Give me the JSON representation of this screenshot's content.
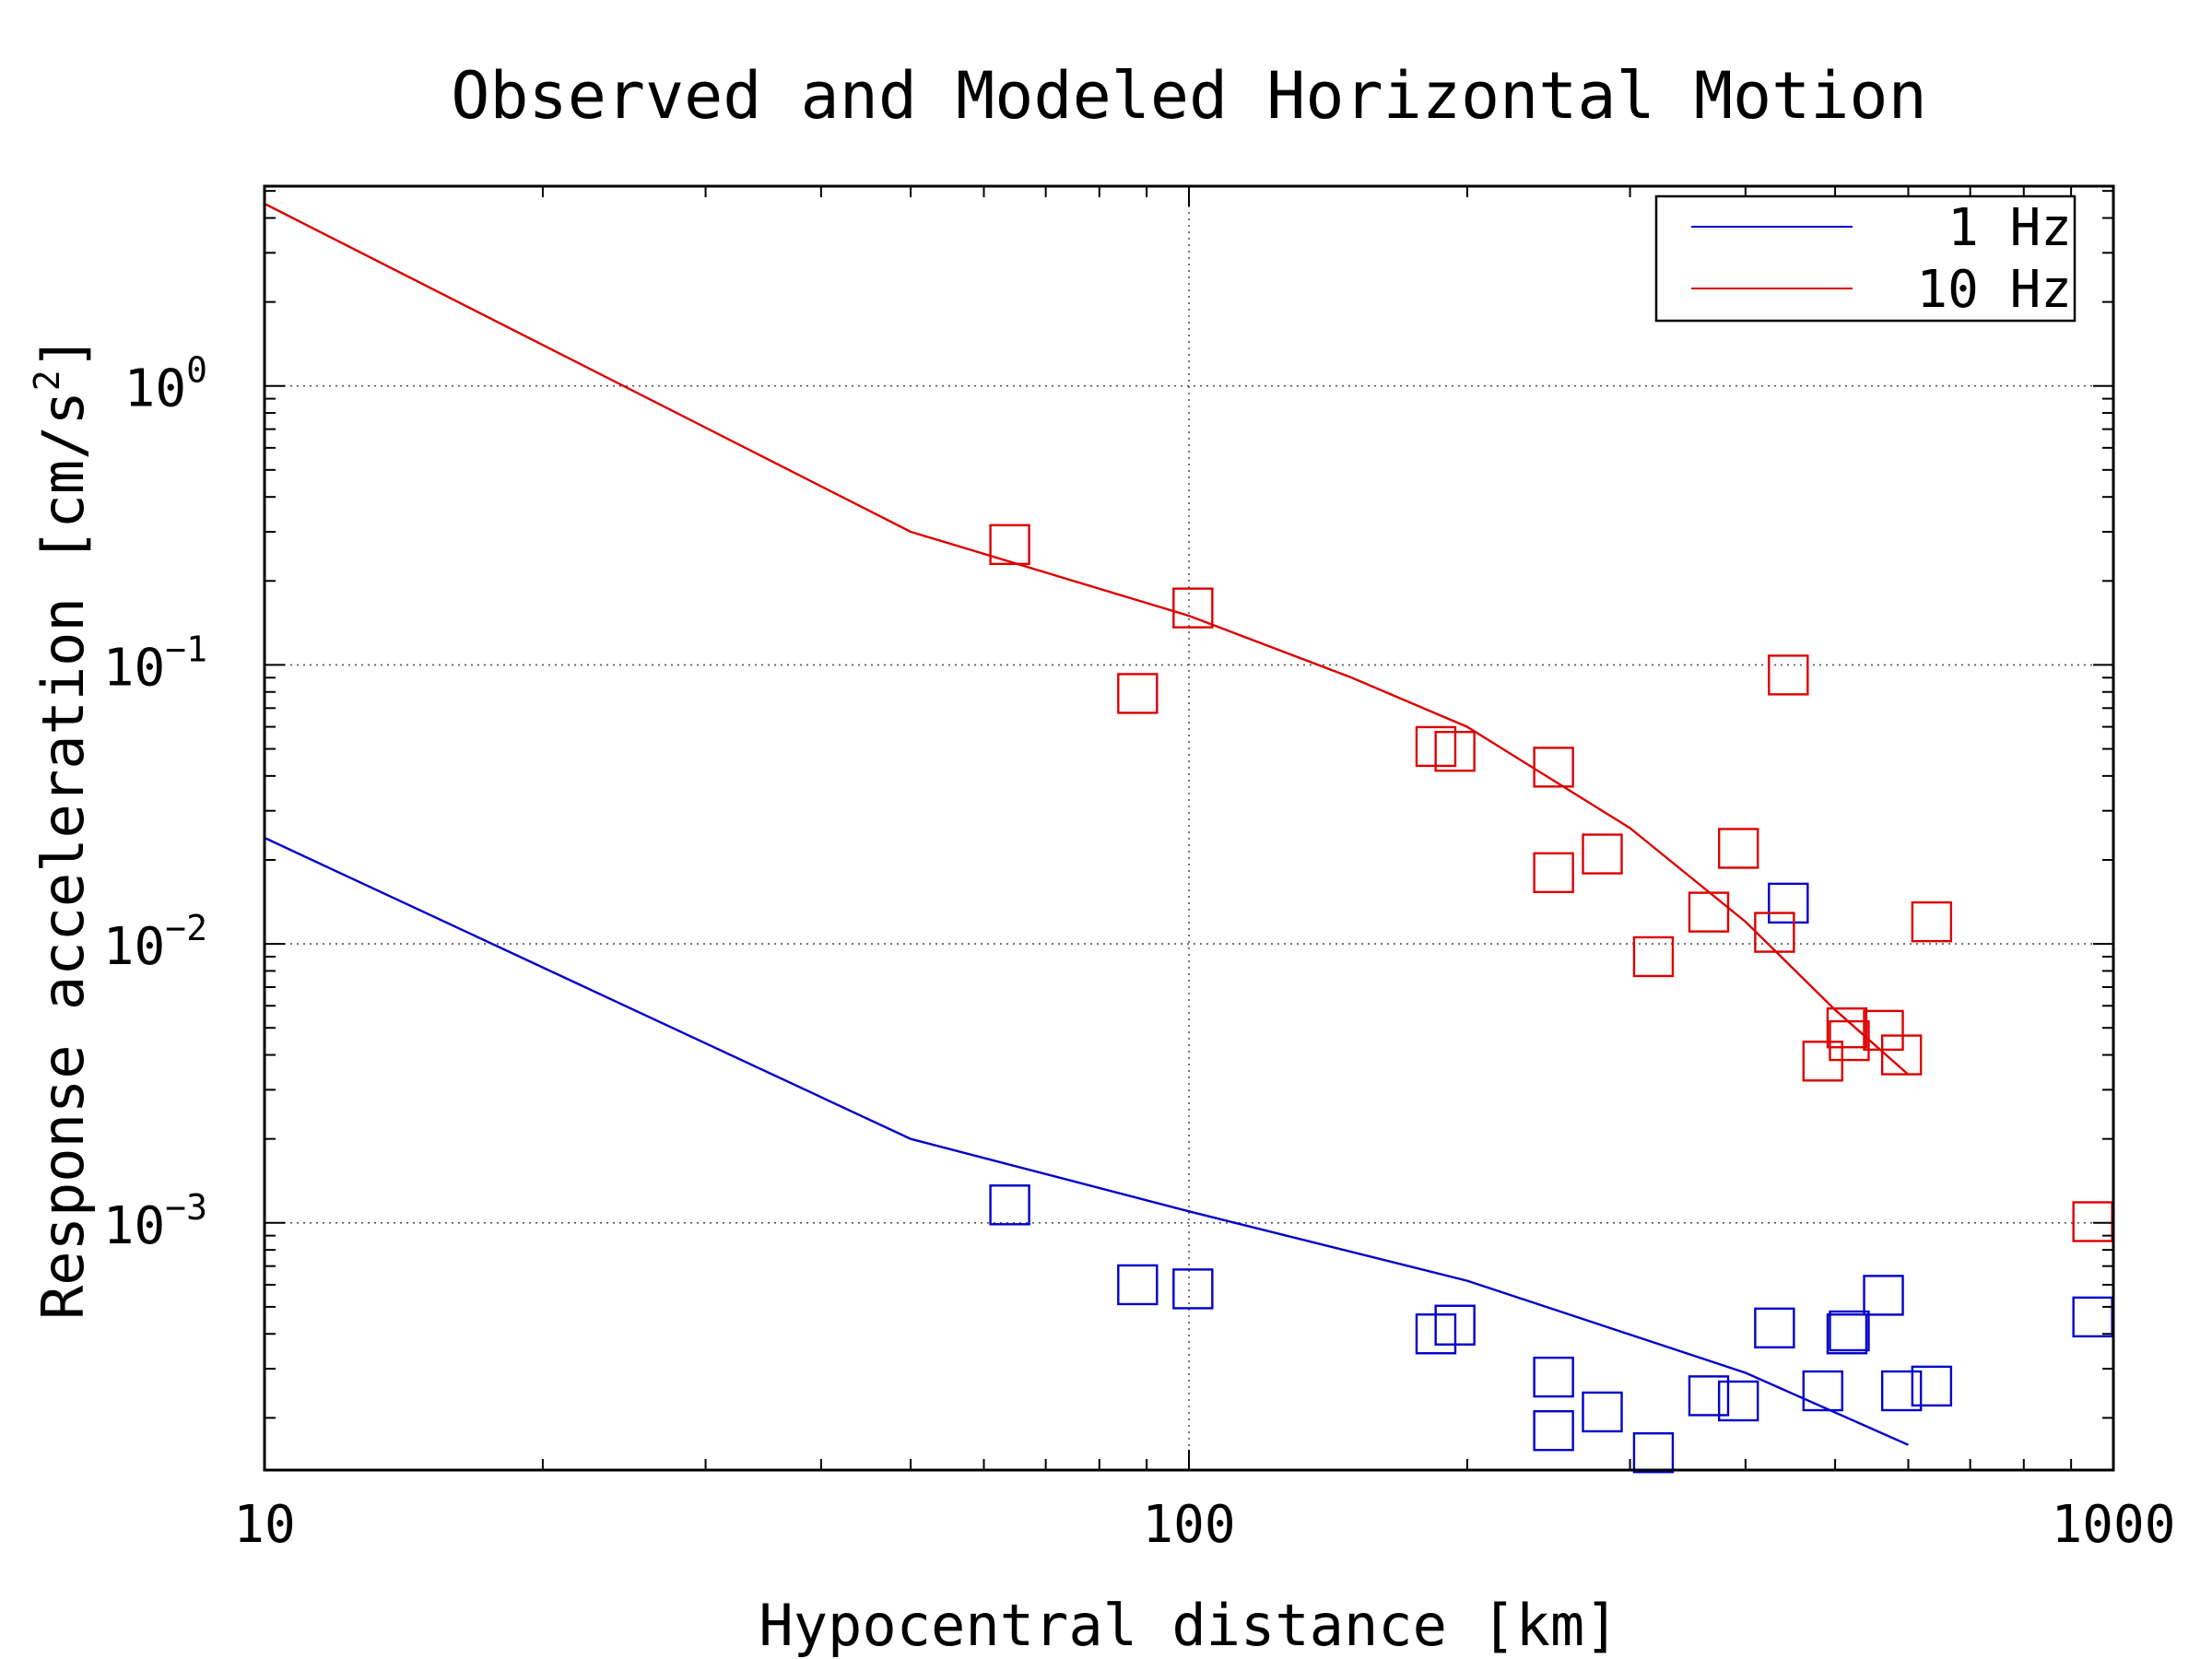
{
  "chart_data": {
    "type": "scatter",
    "title": "Observed and Modeled Horizontal Motion",
    "xlabel": "Hypocentral distance [km]",
    "ylabel_prefix": "Response acceleration [cm/s",
    "ylabel_sup": "2",
    "ylabel_suffix": "]",
    "xscale": "log",
    "yscale": "log",
    "xlim": [
      10,
      1000
    ],
    "ylim": [
      0.00013,
      5.2
    ],
    "grid": true,
    "legend_position": "top-right",
    "x_ticks": [
      {
        "value": 10,
        "label": "10"
      },
      {
        "value": 100,
        "label": "100"
      },
      {
        "value": 1000,
        "label": "1000"
      }
    ],
    "y_ticks": [
      {
        "value": 1,
        "base": "10",
        "exp": "0"
      },
      {
        "value": 0.1,
        "base": "10",
        "exp": "−1"
      },
      {
        "value": 0.01,
        "base": "10",
        "exp": "−2"
      },
      {
        "value": 0.001,
        "base": "10",
        "exp": "−3"
      }
    ],
    "series": [
      {
        "name": "1 Hz",
        "color": "#0000cc",
        "model": {
          "x": [
            10,
            50,
            100,
            200,
            400,
            600
          ],
          "y": [
            0.024,
            0.002,
            0.0011,
            0.00062,
            0.00029,
            0.00016
          ]
        },
        "observed": {
          "x": [
            64,
            88,
            101,
            185,
            194,
            248,
            248,
            280,
            318,
            365,
            393,
            430,
            445,
            485,
            515,
            518,
            564,
            590,
            636,
            950
          ],
          "y": [
            0.00116,
            0.0006,
            0.00058,
            0.0004,
            0.00043,
            0.00028,
            0.00018,
            0.00021,
            0.00015,
            0.00024,
            0.00023,
            0.00042,
            0.014,
            0.00025,
            0.0004,
            0.00041,
            0.00055,
            0.00025,
            0.00026,
            0.00046
          ]
        }
      },
      {
        "name": "10 Hz",
        "color": "#dd0000",
        "model": {
          "x": [
            10,
            50,
            100,
            150,
            200,
            300,
            400,
            500,
            600
          ],
          "y": [
            4.5,
            0.3,
            0.15,
            0.09,
            0.06,
            0.026,
            0.012,
            0.0058,
            0.0034
          ]
        },
        "observed": {
          "x": [
            64,
            88,
            101,
            185,
            194,
            248,
            248,
            280,
            318,
            365,
            393,
            430,
            445,
            485,
            515,
            518,
            564,
            590,
            636,
            950
          ],
          "y": [
            0.27,
            0.079,
            0.16,
            0.051,
            0.049,
            0.043,
            0.018,
            0.021,
            0.009,
            0.013,
            0.022,
            0.011,
            0.092,
            0.0038,
            0.005,
            0.0045,
            0.0049,
            0.004,
            0.012,
            0.00101
          ]
        }
      }
    ]
  }
}
